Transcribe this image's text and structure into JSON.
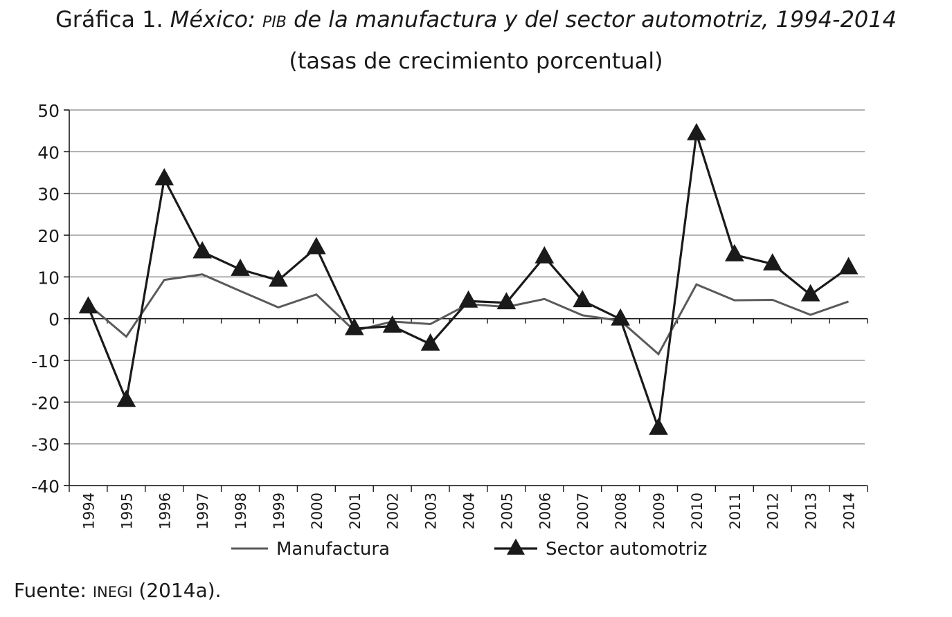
{
  "title": {
    "prefix": "Gráfica 1.",
    "country": "México:",
    "abbr": "PIB",
    "rest": "de la manufactura y del sector automotriz, 1994-2014"
  },
  "subtitle": "(tasas de crecimiento porcentual)",
  "source": {
    "label": "Fuente:",
    "org": "INEGI",
    "ref": "(2014a)."
  },
  "chart_data": {
    "type": "line",
    "title": "México: PIB de la manufactura y del sector automotriz, 1994-2014",
    "subtitle": "(tasas de crecimiento porcentual)",
    "xlabel": "",
    "ylabel": "",
    "ylim": [
      -40,
      50
    ],
    "yticks": [
      50,
      40,
      30,
      20,
      10,
      0,
      -10,
      -20,
      -30,
      -40
    ],
    "ytick_labels": [
      "50",
      "40",
      "30",
      "20",
      "10",
      "0",
      "-10",
      "-20",
      "-30",
      "-40"
    ],
    "grid": true,
    "legend": "bottom",
    "categories": [
      "1994",
      "1995",
      "1996",
      "1997",
      "1998",
      "1999",
      "2000",
      "2001",
      "2002",
      "2003",
      "2004",
      "2005",
      "2006",
      "2007",
      "2008",
      "2009",
      "2010",
      "2011",
      "2012",
      "2013",
      "2014"
    ],
    "series": [
      {
        "name": "Manufactura",
        "color": "#5a5a5a",
        "marker": "none",
        "values": [
          3.4,
          -4.3,
          9.3,
          10.6,
          6.6,
          2.7,
          5.8,
          -2.9,
          -0.7,
          -1.3,
          3.5,
          2.8,
          4.7,
          0.8,
          -0.5,
          -8.5,
          8.2,
          4.4,
          4.5,
          0.9,
          4.1
        ]
      },
      {
        "name": "Sector automotriz",
        "color": "#1a1a1a",
        "marker": "triangle",
        "values": [
          2.8,
          -19.6,
          33.5,
          16.0,
          11.8,
          9.2,
          17.0,
          -2.4,
          -1.8,
          -6.1,
          4.2,
          3.8,
          14.8,
          4.3,
          -0.1,
          -26.3,
          44.3,
          15.3,
          13.1,
          5.7,
          12.2
        ]
      }
    ]
  }
}
